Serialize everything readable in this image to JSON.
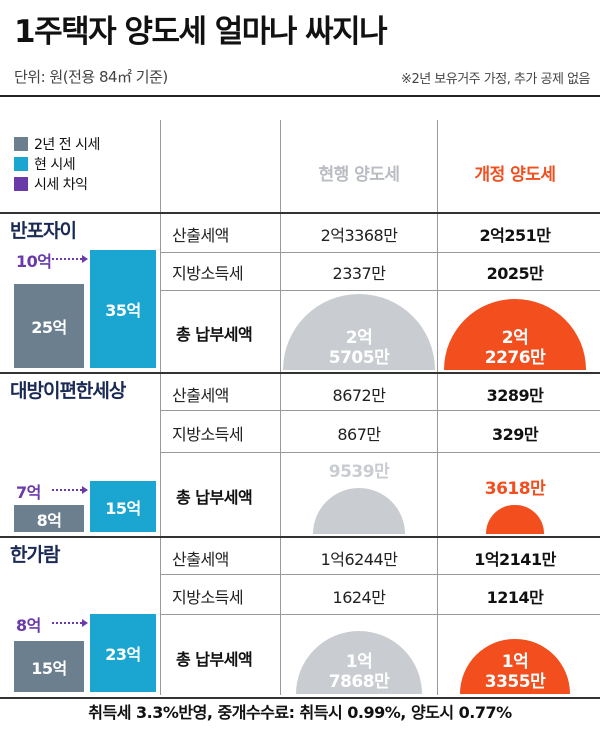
{
  "title": "1주택자 양도세 얼마나 싸지나",
  "unit_note": "단위: 원(전용 84㎡ 기준)",
  "assumption_note": "※2년 보유거주 가정, 추가 공제 없음",
  "footer_note": "취득세 3.3%반영, 중개수수료: 취득시 0.99%, 양도시 0.77%",
  "legend": [
    {
      "label": "2년 전 시세",
      "color": "#6b7f8e"
    },
    {
      "label": "현 시세",
      "color": "#1aa6d0"
    },
    {
      "label": "시세 차익",
      "color": "#6a3aa8"
    }
  ],
  "columns": {
    "current": "현행 양도세",
    "revised": "개정 양도세"
  },
  "colors": {
    "current_circle": "#c9ccd1",
    "revised_circle": "#f24e1e",
    "old_bar": "#6b7f8e",
    "new_bar": "#1aa6d0",
    "gain": "#6a3aa8"
  },
  "row_labels": {
    "tax": "산출세액",
    "local": "지방소득세",
    "total": "총 납부세액"
  },
  "chart_data": {
    "type": "table",
    "units": "원",
    "groups": [
      {
        "name": "반포자이",
        "price_2y_ago": "25억",
        "price_now": "35억",
        "gain": "10억",
        "price_2y_ago_value": 25,
        "price_now_value": 35,
        "gain_value": 10,
        "current": {
          "tax": "2억3368만",
          "local": "2337만",
          "total_line1": "2억",
          "total_line2": "5705만",
          "total_value": 25705
        },
        "revised": {
          "tax": "2억251만",
          "local": "2025만",
          "total_line1": "2억",
          "total_line2": "2276만",
          "total_value": 22276
        }
      },
      {
        "name": "대방이편한세상",
        "price_2y_ago": "8억",
        "price_now": "15억",
        "gain": "7억",
        "price_2y_ago_value": 8,
        "price_now_value": 15,
        "gain_value": 7,
        "current": {
          "tax": "8672만",
          "local": "867만",
          "total_line1": "9539만",
          "total_line2": "",
          "total_value": 9539
        },
        "revised": {
          "tax": "3289만",
          "local": "329만",
          "total_line1": "3618만",
          "total_line2": "",
          "total_value": 3618
        }
      },
      {
        "name": "한가람",
        "price_2y_ago": "15억",
        "price_now": "23억",
        "gain": "8억",
        "price_2y_ago_value": 15,
        "price_now_value": 23,
        "gain_value": 8,
        "current": {
          "tax": "1억6244만",
          "local": "1624만",
          "total_line1": "1억",
          "total_line2": "7868만",
          "total_value": 17868
        },
        "revised": {
          "tax": "1억2141만",
          "local": "1214만",
          "total_line1": "1억",
          "total_line2": "3355만",
          "total_value": 13355
        }
      }
    ]
  }
}
